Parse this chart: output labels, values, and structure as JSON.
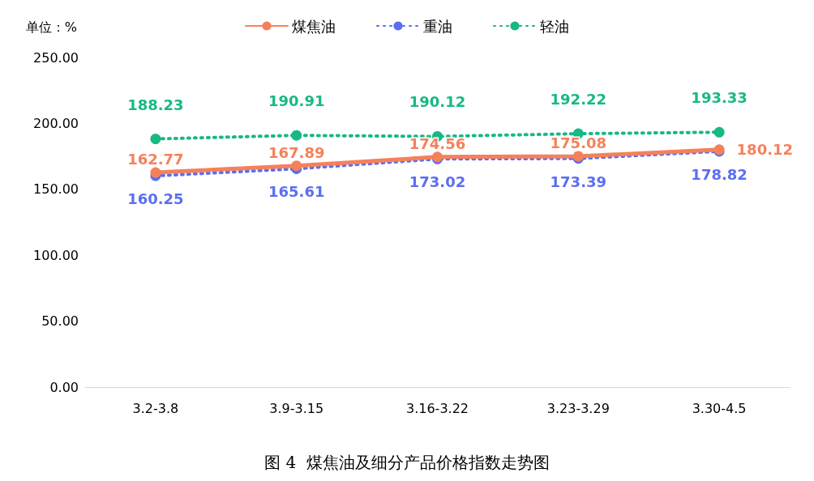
{
  "chart_data": {
    "type": "line",
    "title": "图 4  煤焦油及细分产品价格指数走势图",
    "ylabel": "单位：%",
    "categories": [
      "3.2-3.8",
      "3.9-3.15",
      "3.16-3.22",
      "3.23-3.29",
      "3.30-4.5"
    ],
    "series": [
      {
        "name": "煤焦油",
        "color": "#f5815b",
        "line_style": "solid",
        "values": [
          162.77,
          167.89,
          174.56,
          175.08,
          180.12
        ]
      },
      {
        "name": "重油",
        "color": "#5b6ef2",
        "line_style": "dotted",
        "values": [
          160.25,
          165.61,
          173.02,
          173.39,
          178.82
        ]
      },
      {
        "name": "轻油",
        "color": "#18b886",
        "line_style": "dotted",
        "values": [
          188.23,
          190.91,
          190.12,
          192.22,
          193.33
        ]
      }
    ],
    "ylim": [
      0,
      250
    ],
    "yticks": [
      {
        "value": 0,
        "label": "0.00"
      },
      {
        "value": 50,
        "label": "50.00"
      },
      {
        "value": 100,
        "label": "100.00"
      },
      {
        "value": 150,
        "label": "150.00"
      },
      {
        "value": 200,
        "label": "200.00"
      },
      {
        "value": 250,
        "label": "250.00"
      }
    ],
    "grid": false,
    "legend": "top",
    "marker": "circle",
    "data_labels": true
  }
}
